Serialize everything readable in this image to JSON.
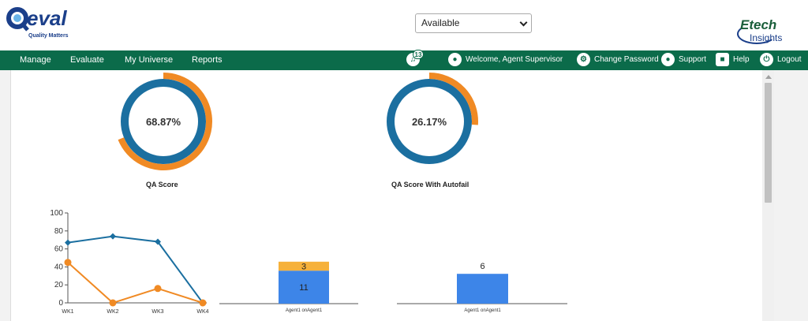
{
  "header": {
    "logo": {
      "text_q": "Q",
      "text_eval": "eval",
      "tagline": "Quality Matters"
    },
    "status_select": {
      "value": "Available"
    },
    "brand": {
      "line1": "Etech",
      "line2": "Insights"
    }
  },
  "nav": {
    "items": [
      "Manage",
      "Evaluate",
      "My Universe",
      "Reports"
    ],
    "notifications_count": "13",
    "welcome": "Welcome, Agent Supervisor",
    "change_password": "Change Password",
    "support": "Support",
    "help": "Help",
    "logout": "Logout"
  },
  "colors": {
    "nav_bg": "#0b6b4a",
    "ring_blue": "#1b6fa0",
    "ring_orange": "#f08a24",
    "bar_blue": "#3d85e8",
    "bar_orange": "#f6b13a"
  },
  "scores": [
    {
      "label": "QA Score",
      "value": "68.87%",
      "fraction": 0.6887
    },
    {
      "label": "QA Score With Autofail",
      "value": "26.17%",
      "fraction": 0.2617
    }
  ],
  "chart_data": [
    {
      "type": "line",
      "categories": [
        "WK1",
        "WK2",
        "WK3",
        "WK4"
      ],
      "ylim": [
        0,
        100
      ],
      "yticks": [
        "0",
        "20",
        "40",
        "60",
        "80",
        "100"
      ],
      "series": [
        {
          "values": [
            67,
            74,
            68,
            0
          ],
          "color": "#1b6fa0",
          "marker": "diamond"
        },
        {
          "values": [
            45,
            0,
            16,
            0
          ],
          "color": "#f08a24",
          "marker": "circle"
        }
      ]
    },
    {
      "type": "bar",
      "stacked": true,
      "categories": [
        "Agent1 onAgent1"
      ],
      "series": [
        {
          "values": [
            11
          ],
          "color": "#3d85e8"
        },
        {
          "values": [
            3
          ],
          "color": "#f6b13a"
        }
      ],
      "data_labels": [
        "11",
        "3"
      ]
    },
    {
      "type": "bar",
      "categories": [
        "Agent1 onAgent1"
      ],
      "series": [
        {
          "values": [
            6
          ],
          "color": "#3d85e8"
        }
      ],
      "data_labels": [
        "6"
      ]
    }
  ]
}
